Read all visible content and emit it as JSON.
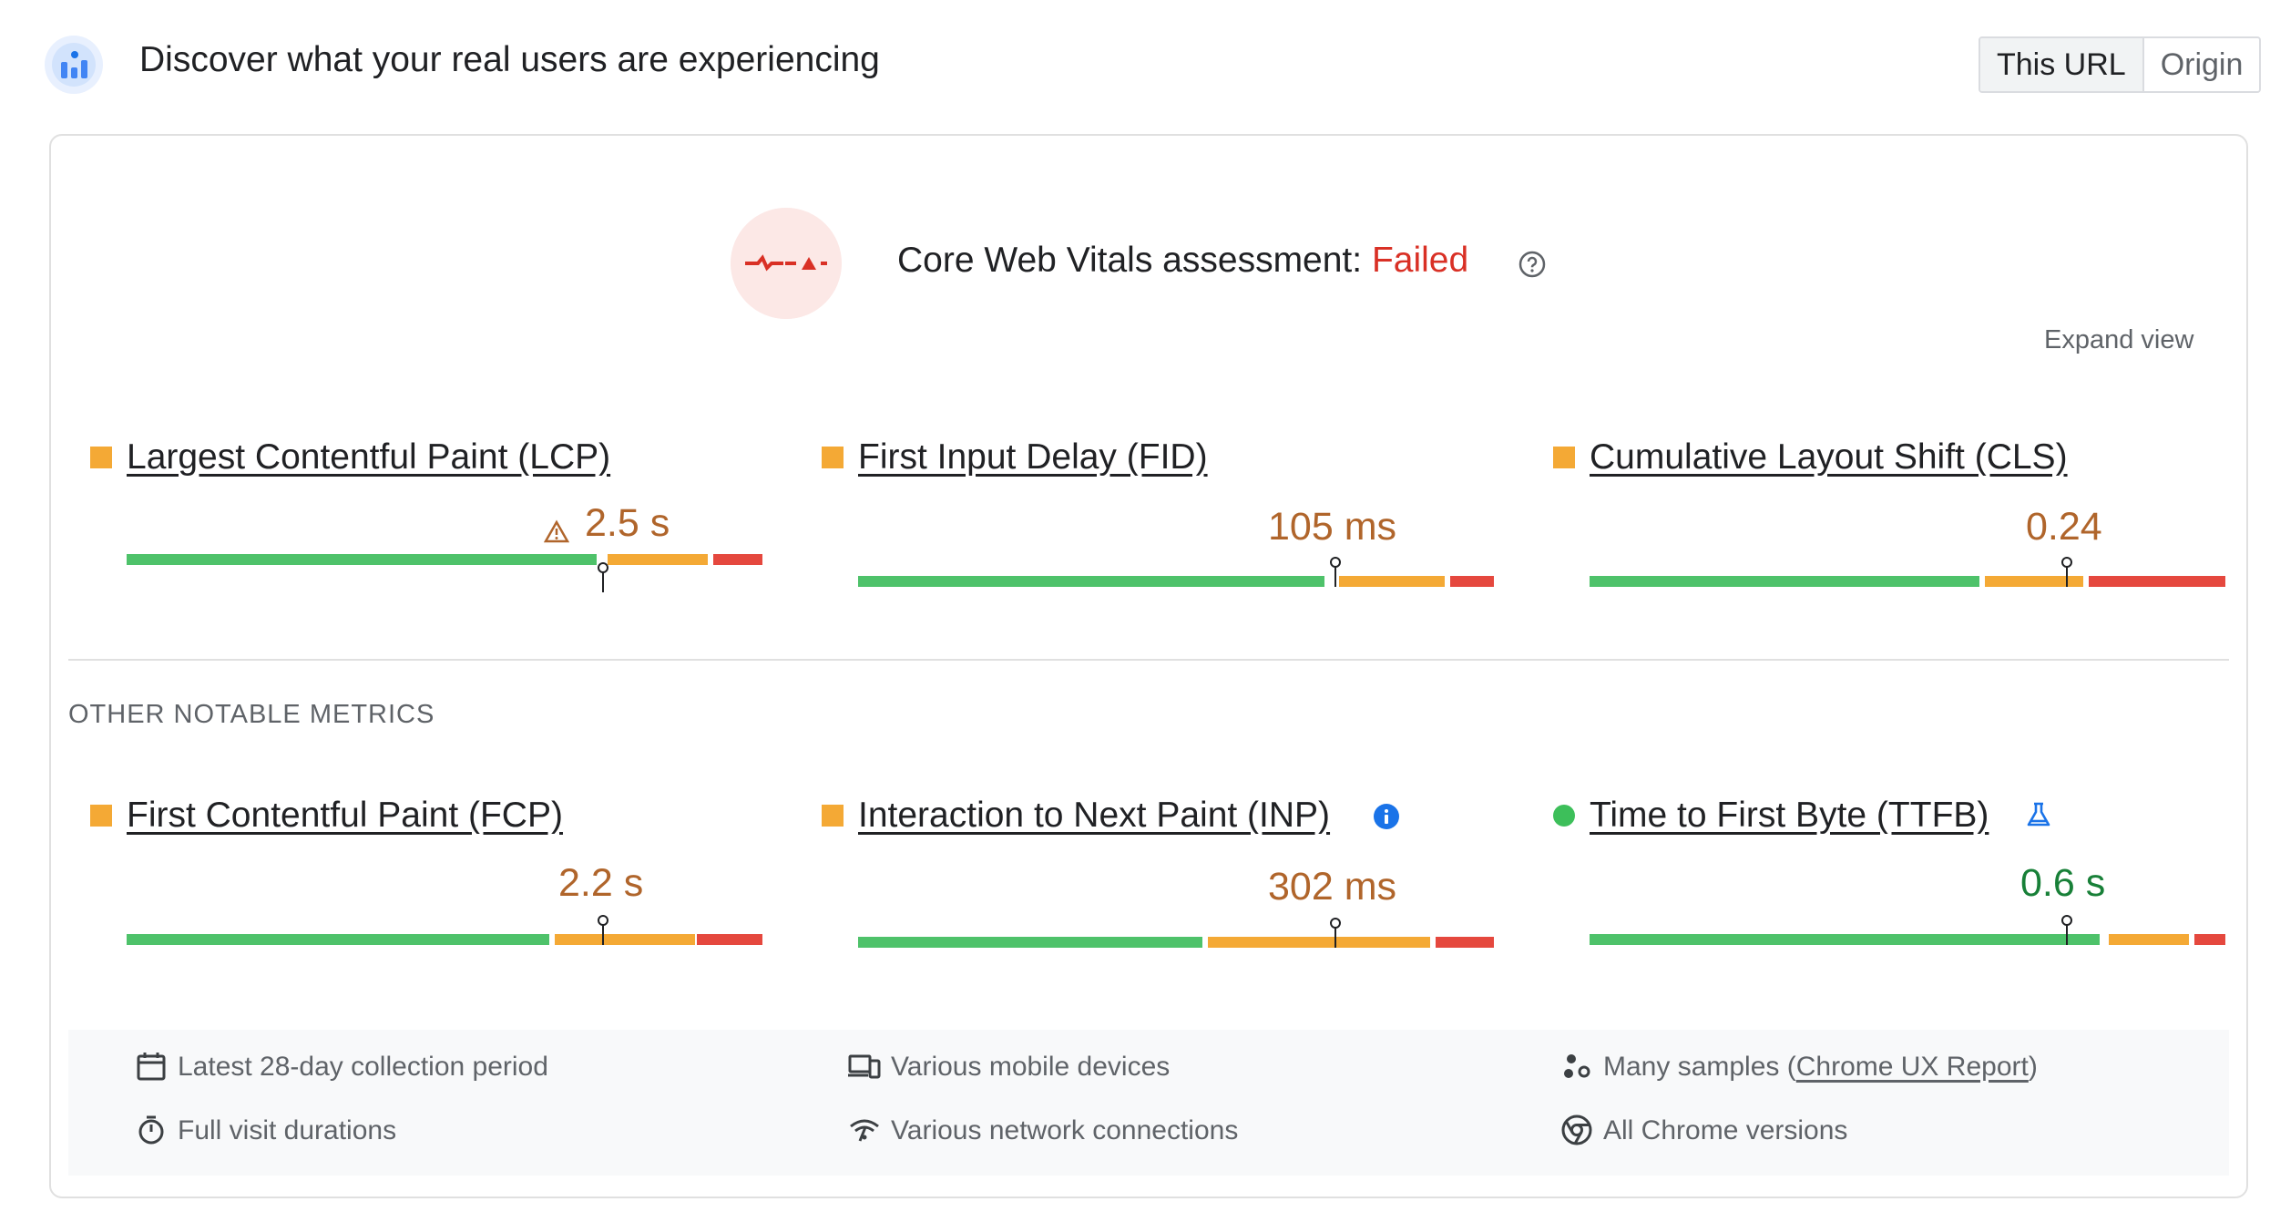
{
  "header": {
    "title": "Discover what your real users are experiencing",
    "toggle": [
      "This URL",
      "Origin"
    ],
    "active_toggle": "This URL"
  },
  "assessment": {
    "label": "Core Web Vitals assessment: ",
    "status": "Failed",
    "expand_label": "Expand view"
  },
  "core_metrics": [
    {
      "name": "Largest Contentful Paint (LCP)",
      "value": "2.5 s",
      "rating": "needs-improvement",
      "warning": true
    },
    {
      "name": "First Input Delay (FID)",
      "value": "105 ms",
      "rating": "needs-improvement"
    },
    {
      "name": "Cumulative Layout Shift (CLS)",
      "value": "0.24",
      "rating": "needs-improvement"
    }
  ],
  "other_section_label": "OTHER NOTABLE METRICS",
  "other_metrics": [
    {
      "name": "First Contentful Paint (FCP)",
      "value": "2.2 s",
      "rating": "needs-improvement"
    },
    {
      "name": "Interaction to Next Paint (INP)",
      "value": "302 ms",
      "rating": "needs-improvement",
      "badge": "info-icon"
    },
    {
      "name": "Time to First Byte (TTFB)",
      "value": "0.6 s",
      "rating": "good",
      "badge": "experimental-flask-icon"
    }
  ],
  "footer": {
    "period": "Latest 28-day collection period",
    "devices": "Various mobile devices",
    "samples_prefix": "Many samples (",
    "samples_link": "Chrome UX Report",
    "samples_suffix": ")",
    "durations": "Full visit durations",
    "network": "Various network connections",
    "versions": "All Chrome versions"
  },
  "colors": {
    "good": "#4ec26a",
    "needs_improvement": "#f4a935",
    "poor": "#e5483e",
    "failed_text": "#d93025",
    "value_average": "#b0652b",
    "value_good": "#188038"
  }
}
